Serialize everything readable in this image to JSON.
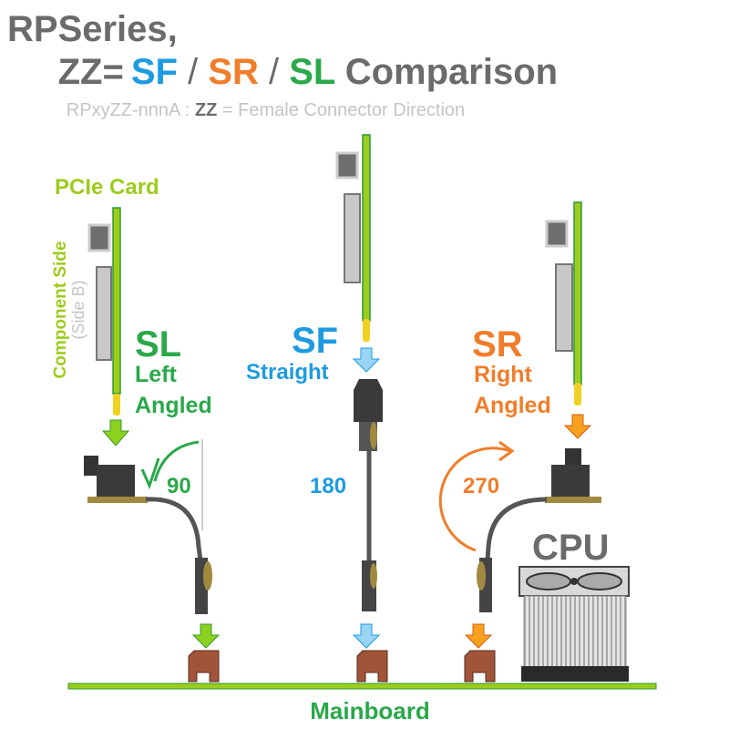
{
  "title": {
    "line1": "RPSeries,",
    "prefix": "ZZ=",
    "sf": "SF",
    "sep1": " / ",
    "sr": "SR",
    "sep2": " / ",
    "sl": "SL",
    "suffix": " Comparison"
  },
  "subtitle": {
    "part1": "RPxyZZ-nnnA : ",
    "zz": "ZZ",
    "part2": " = Female Connector Direction"
  },
  "labels": {
    "pcie_card": "PCIe Card",
    "component_side": "Component Side",
    "side_b": "(Side B)",
    "mainboard": "Mainboard",
    "cpu": "CPU"
  },
  "variants": [
    {
      "code": "SL",
      "line1": "Left",
      "line2": "Angled",
      "angle": "90"
    },
    {
      "code": "SF",
      "line1": "Straight",
      "line2": "",
      "angle": "180"
    },
    {
      "code": "SR",
      "line1": "Right",
      "line2": "Angled",
      "angle": "270"
    }
  ],
  "colors": {
    "gray": "#6b6b6b",
    "light_gray": "#c4c4c4",
    "sf_blue": "#1e9be0",
    "sr_orange": "#f07d2a",
    "sl_green": "#2aa84a",
    "pcie_lime": "#9ccc1c",
    "slot_brown": "#a0553a"
  }
}
